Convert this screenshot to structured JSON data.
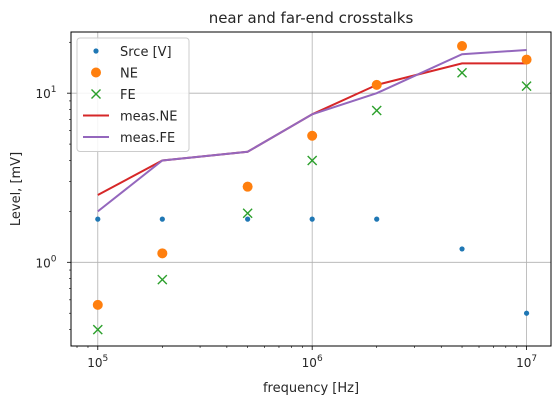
{
  "chart_data": {
    "type": "scatter",
    "title": "near and far-end crosstalks",
    "xlabel": "frequency [Hz]",
    "ylabel": "Level, [mV]",
    "xscale": "log",
    "yscale": "log",
    "xlim": [
      75000,
      13000000
    ],
    "ylim": [
      0.32,
      23
    ],
    "grid": true,
    "legend_position": "top-left",
    "x_ticks": [
      {
        "value": 100000,
        "mantissa": "10",
        "exp": "5"
      },
      {
        "value": 1000000,
        "mantissa": "10",
        "exp": "6"
      },
      {
        "value": 10000000,
        "mantissa": "10",
        "exp": "7"
      }
    ],
    "y_ticks": [
      {
        "value": 1,
        "mantissa": "10",
        "exp": "0"
      },
      {
        "value": 10,
        "mantissa": "10",
        "exp": "1"
      }
    ],
    "x": [
      100000,
      200000,
      500000,
      1000000,
      2000000,
      5000000,
      10000000
    ],
    "series": [
      {
        "name": "Srce [V]",
        "kind": "points",
        "marker": "dot",
        "color": "#1f77b4",
        "values": [
          1.8,
          1.8,
          1.8,
          1.8,
          1.8,
          1.2,
          0.5
        ]
      },
      {
        "name": "NE",
        "kind": "points",
        "marker": "circle",
        "color": "#ff7f0e",
        "values": [
          0.56,
          1.13,
          2.8,
          5.6,
          11.2,
          19.0,
          15.8
        ]
      },
      {
        "name": "FE",
        "kind": "points",
        "marker": "x",
        "color": "#2ca02c",
        "values": [
          0.4,
          0.79,
          1.95,
          4.0,
          7.9,
          13.2,
          11.0
        ]
      },
      {
        "name": "meas.NE",
        "kind": "line",
        "color": "#d62728",
        "values": [
          2.5,
          4.0,
          4.5,
          7.5,
          11.2,
          15.0,
          15.0
        ]
      },
      {
        "name": "meas.FE",
        "kind": "line",
        "color": "#9467bd",
        "values": [
          2.0,
          4.0,
          4.5,
          7.5,
          10.0,
          17.0,
          18.0
        ]
      }
    ]
  }
}
